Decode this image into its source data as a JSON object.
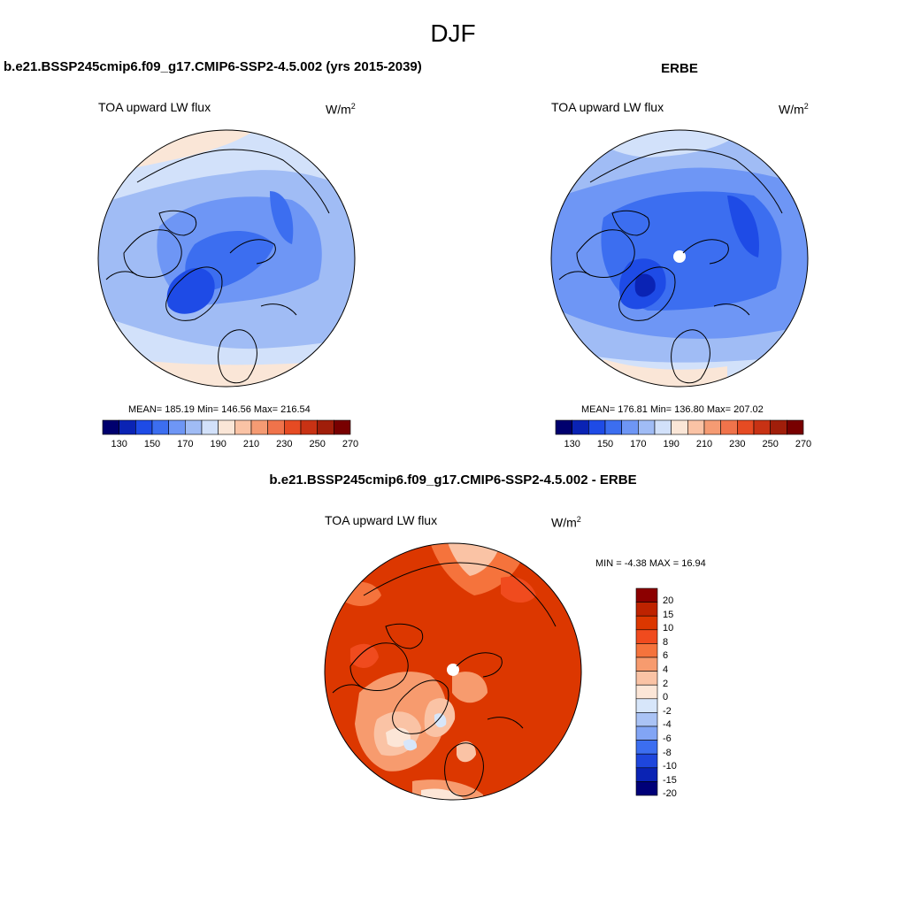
{
  "figure": {
    "season": "DJF",
    "left_title": "b.e21.BSSP245cmip6.f09_g17.CMIP6-SSP2-4.5.002 (yrs 2015-2039)",
    "right_title": "ERBE",
    "diff_title": "b.e21.BSSP245cmip6.f09_g17.CMIP6-SSP2-4.5.002 - ERBE"
  },
  "panels": {
    "model": {
      "variable": "TOA upward LW flux",
      "units": "W/m",
      "units_sup": "2",
      "stats": "MEAN= 185.19  Min= 146.56  Max= 216.54"
    },
    "obs": {
      "variable": "TOA upward LW flux",
      "units": "W/m",
      "units_sup": "2",
      "stats": "MEAN= 176.81  Min= 136.80  Max= 207.02"
    },
    "diff": {
      "variable": "TOA upward LW flux",
      "units": "W/m",
      "units_sup": "2",
      "stats": "MIN =  -4.38 MAX =  16.94"
    }
  },
  "colorbars": {
    "abs": {
      "labels": [
        "130",
        "150",
        "170",
        "190",
        "210",
        "230",
        "250",
        "270"
      ],
      "colors": [
        "#00006e",
        "#0a23b4",
        "#1e4be6",
        "#3c6ef0",
        "#6e96f5",
        "#a0bcf5",
        "#d2e1fa",
        "#fae6d7",
        "#fac3a5",
        "#f59b73",
        "#f0734b",
        "#e64b23",
        "#c83214",
        "#a01e0a",
        "#780000"
      ]
    },
    "diff": {
      "labels": [
        "20",
        "15",
        "10",
        "8",
        "6",
        "4",
        "2",
        "0",
        "-2",
        "-4",
        "-6",
        "-8",
        "-10",
        "-15",
        "-20"
      ],
      "colors": [
        "#8c0000",
        "#be2300",
        "#dc3700",
        "#f04b1e",
        "#f5733c",
        "#f79b6e",
        "#fac3a5",
        "#fce6d7",
        "#d7e6fa",
        "#aac3f5",
        "#82a5f5",
        "#3c6ef0",
        "#1e46dc",
        "#0a23b4",
        "#000078"
      ]
    }
  }
}
